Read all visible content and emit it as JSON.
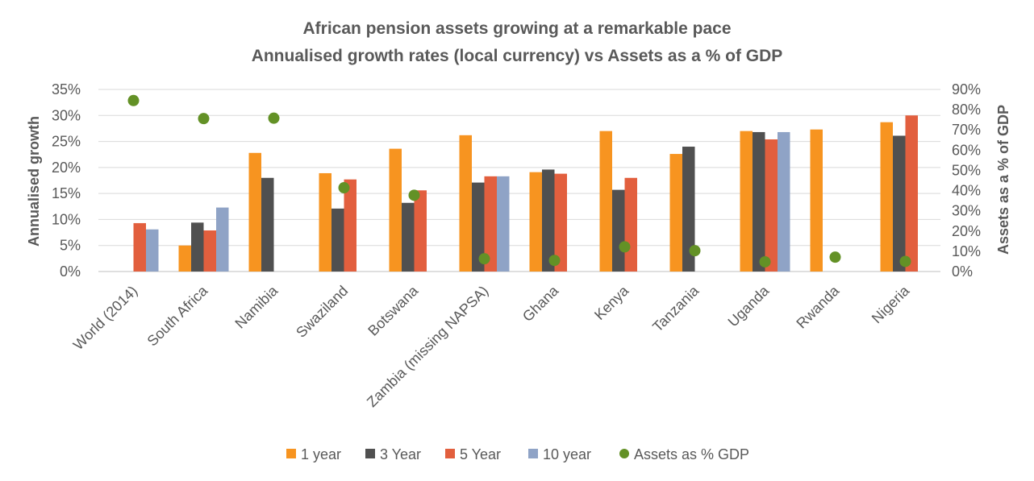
{
  "chart_data": {
    "type": "bar",
    "title": "African pension assets growing at a remarkable pace",
    "subtitle": "Annualised growth rates (local currency) vs Assets as a % of GDP",
    "ylabel": "Annualised growth",
    "y2label": "Assets as a % of GDP",
    "ylim": [
      0,
      35
    ],
    "yticks": [
      "0%",
      "5%",
      "10%",
      "15%",
      "20%",
      "25%",
      "30%",
      "35%"
    ],
    "y2lim": [
      0,
      90
    ],
    "y2ticks": [
      "0%",
      "10%",
      "20%",
      "30%",
      "40%",
      "50%",
      "60%",
      "70%",
      "80%",
      "90%"
    ],
    "grid": true,
    "legend_position": "bottom",
    "categories": [
      "World (2014)",
      "South Africa",
      "Namibia",
      "Swaziland",
      "Botswana",
      "Zambia (missing NAPSA)",
      "Ghana",
      "Kenya",
      "Tanzania",
      "Uganda",
      "Rwanda",
      "Nigeria"
    ],
    "series": [
      {
        "name": "1 year",
        "color": "#F79420",
        "values": [
          null,
          5.0,
          22.8,
          18.9,
          23.6,
          26.2,
          19.1,
          27.0,
          22.6,
          27.0,
          27.3,
          28.7
        ]
      },
      {
        "name": "3 Year",
        "color": "#505050",
        "values": [
          null,
          9.4,
          18.0,
          12.1,
          13.2,
          17.1,
          19.6,
          15.7,
          24.0,
          26.8,
          null,
          26.1
        ]
      },
      {
        "name": "5 Year",
        "color": "#E25F3E",
        "values": [
          9.3,
          7.9,
          null,
          17.7,
          15.6,
          18.3,
          18.8,
          18.0,
          null,
          25.4,
          null,
          30.0
        ]
      },
      {
        "name": "10 year",
        "color": "#8FA3C6",
        "values": [
          8.1,
          12.3,
          null,
          null,
          null,
          18.3,
          null,
          null,
          null,
          26.8,
          null,
          null
        ]
      }
    ],
    "scatter": {
      "name": "Assets as % GDP",
      "color": "#639126",
      "axis": "secondary",
      "values": [
        84.5,
        75.6,
        75.8,
        41.4,
        37.7,
        6.3,
        5.5,
        12.2,
        10.3,
        4.8,
        7.1,
        5.0
      ]
    }
  }
}
